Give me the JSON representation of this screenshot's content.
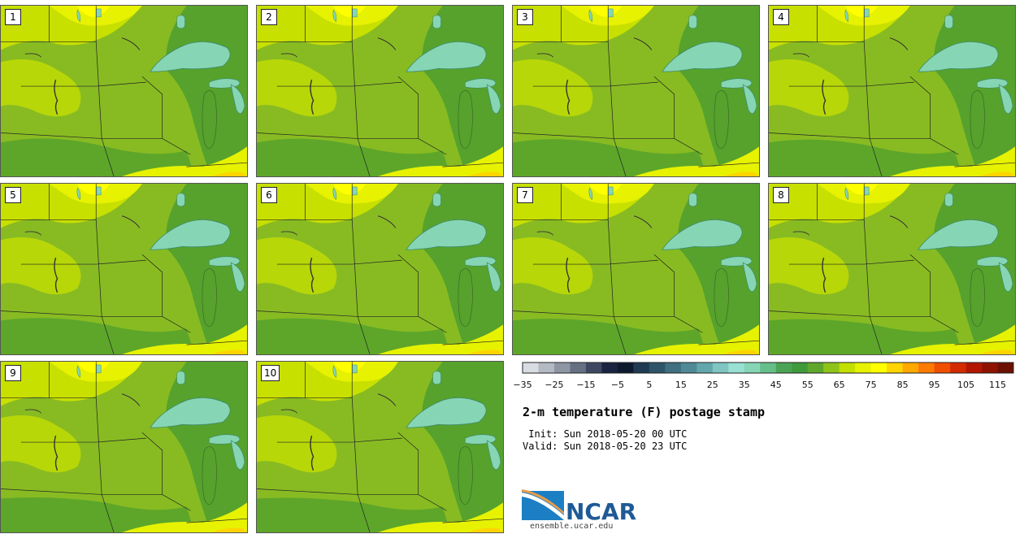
{
  "stamps": [
    {
      "label": "1"
    },
    {
      "label": "2"
    },
    {
      "label": "3"
    },
    {
      "label": "4"
    },
    {
      "label": "5"
    },
    {
      "label": "6"
    },
    {
      "label": "7"
    },
    {
      "label": "8"
    },
    {
      "label": "9"
    },
    {
      "label": "10"
    }
  ],
  "colorbar": {
    "tick_labels": [
      "−35",
      "−25",
      "−15",
      "−5",
      "5",
      "15",
      "25",
      "35",
      "45",
      "55",
      "65",
      "75",
      "85",
      "95",
      "105",
      "115"
    ],
    "colors": [
      "#d8dde4",
      "#b4bac4",
      "#8e96a4",
      "#667083",
      "#3d4860",
      "#1a2440",
      "#0d1a2e",
      "#1f3a52",
      "#2e5468",
      "#3f6f80",
      "#4f8a96",
      "#63a7ac",
      "#7fc6c2",
      "#97e0d2",
      "#86d5b4",
      "#66bf8a",
      "#4ba456",
      "#3f9a3c",
      "#5fa72c",
      "#8ec41a",
      "#c2e000",
      "#e6f200",
      "#ffff00",
      "#ffd400",
      "#ffa800",
      "#ff7a00",
      "#f04e00",
      "#d42a00",
      "#b31600",
      "#8f1200",
      "#6b1000"
    ]
  },
  "title": "2-m temperature (F) postage stamp",
  "init": " Init: Sun 2018-05-20 00 UTC",
  "valid": "Valid: Sun 2018-05-20 23 UTC",
  "logo": {
    "text": "NCAR",
    "url": "ensemble.ucar.edu"
  },
  "map_colors": {
    "base": "#88bb22",
    "warm_yellow": "#c8e000",
    "yellow": "#e6f200",
    "bright_yellow": "#ffff00",
    "dark_green": "#56a22c",
    "lake": "#86d5b4",
    "lake_edge": "#3d8a6a"
  }
}
